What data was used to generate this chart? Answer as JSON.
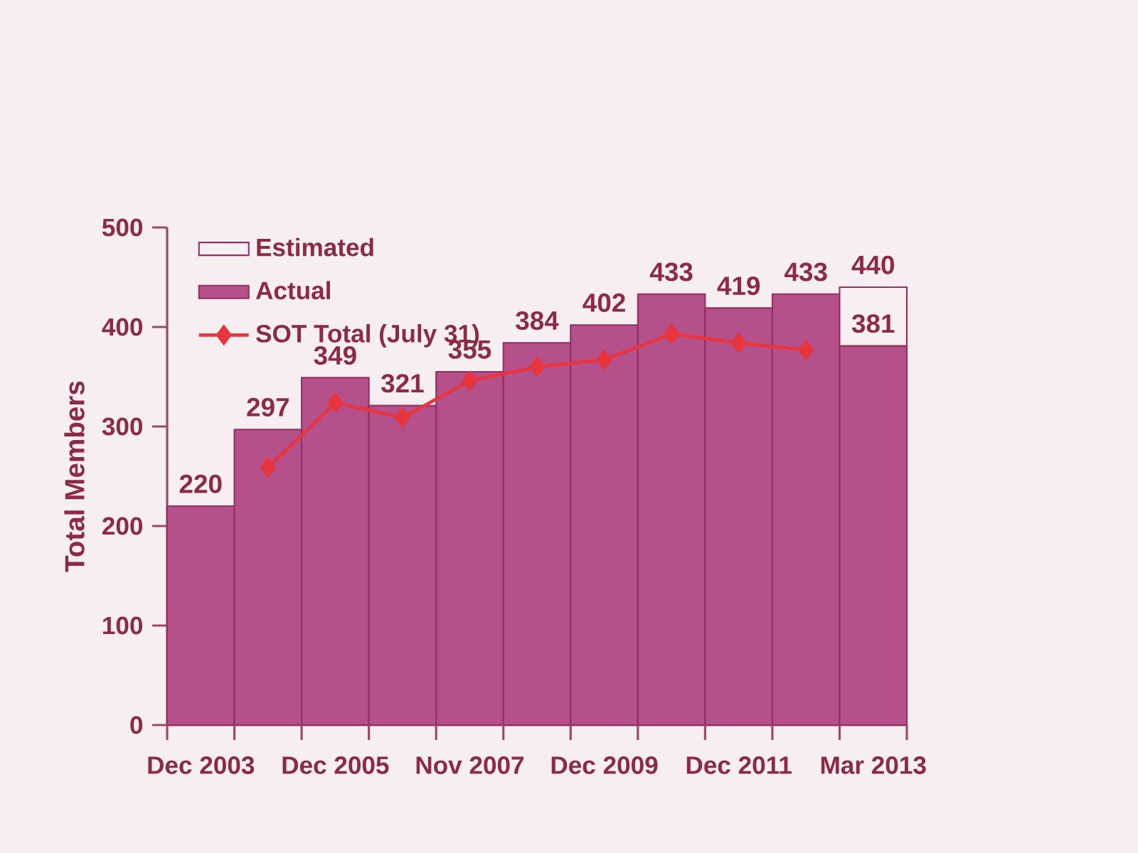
{
  "chart_data": {
    "type": "bar",
    "stacked": true,
    "categories": [
      "Dec 2003",
      null,
      "Dec 2005",
      null,
      "Nov 2007",
      null,
      "Dec 2009",
      null,
      "Dec 2011",
      null,
      "Mar 2013"
    ],
    "ylabel": "Total Members",
    "ylim": [
      0,
      500
    ],
    "yticks": [
      0,
      100,
      200,
      300,
      400,
      500
    ],
    "series": [
      {
        "name": "Actual",
        "color": "#b5508a",
        "values": [
          220,
          297,
          349,
          321,
          355,
          384,
          402,
          433,
          419,
          433,
          381
        ],
        "value_labels": [
          "220",
          "297",
          "349",
          "321",
          "355",
          "384",
          "402",
          "433",
          "419",
          "433",
          "381"
        ]
      },
      {
        "name": "Estimated",
        "color": "#f8eff3",
        "values": [
          null,
          null,
          null,
          null,
          null,
          null,
          null,
          null,
          null,
          null,
          59
        ]
      },
      {
        "name": "SOT Total (July 31)",
        "type": "line",
        "color": "#e8343c",
        "marker": "diamond",
        "values": [
          null,
          259,
          324,
          309,
          346,
          360,
          367,
          393,
          384,
          377,
          null
        ]
      }
    ],
    "totals": [
      null,
      null,
      null,
      null,
      null,
      null,
      null,
      null,
      null,
      null,
      "440"
    ],
    "legend": "top left"
  }
}
